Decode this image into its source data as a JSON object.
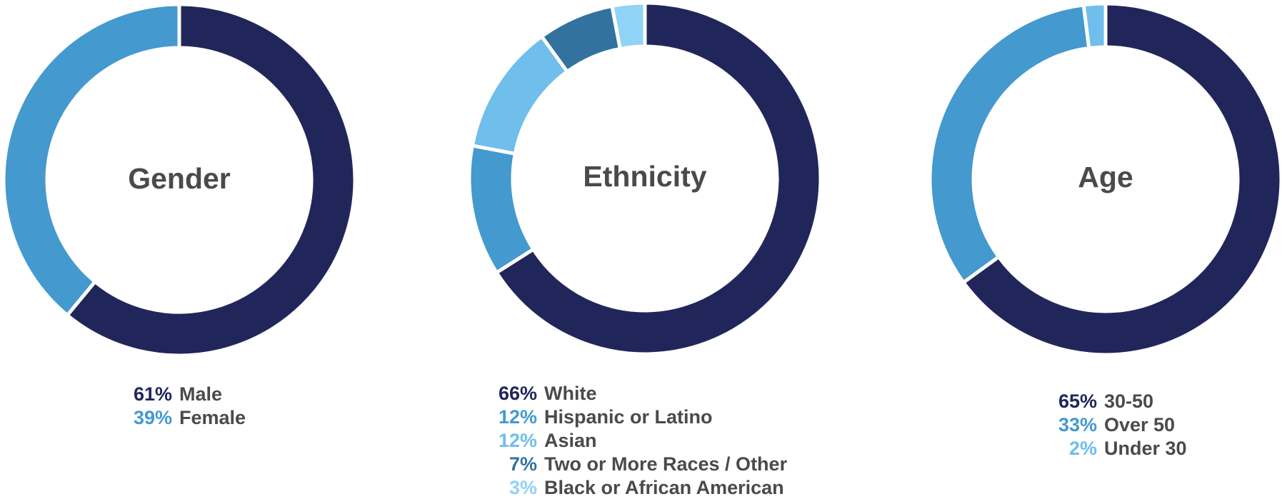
{
  "chart_data": [
    {
      "type": "pie",
      "title": "Gender",
      "slices": [
        {
          "label": "Male",
          "value": 61,
          "display": "61%",
          "color": "#21265a"
        },
        {
          "label": "Female",
          "value": 39,
          "display": "39%",
          "color": "#4499cf"
        }
      ]
    },
    {
      "type": "pie",
      "title": "Ethnicity",
      "slices": [
        {
          "label": "White",
          "value": 66,
          "display": "66%",
          "color": "#21265a"
        },
        {
          "label": "Hispanic or Latino",
          "value": 12,
          "display": "12%",
          "color": "#4499cf"
        },
        {
          "label": "Asian",
          "value": 12,
          "display": "12%",
          "color": "#6fbeeb"
        },
        {
          "label": "Two or More Races / Other",
          "value": 7,
          "display": "7%",
          "color": "#33729f"
        },
        {
          "label": "Black or African American",
          "value": 3,
          "display": "3%",
          "color": "#8fd3f7"
        }
      ]
    },
    {
      "type": "pie",
      "title": "Age",
      "slices": [
        {
          "label": "30-50",
          "value": 65,
          "display": "65%",
          "color": "#21265a"
        },
        {
          "label": "Over 50",
          "value": 33,
          "display": "33%",
          "color": "#4499cf"
        },
        {
          "label": "Under 30",
          "value": 2,
          "display": "2%",
          "color": "#6fbeeb"
        }
      ]
    }
  ]
}
